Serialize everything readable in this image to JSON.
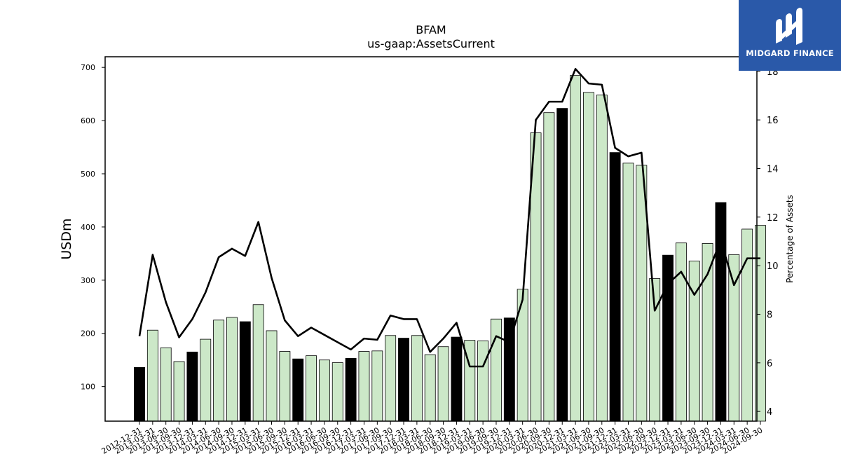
{
  "brand": {
    "name": "MIDGARD FINANCE",
    "logo_icon": "midgard-m-icon",
    "color": "#2a59a9"
  },
  "chart_data": {
    "type": "bar",
    "title": "BFAM",
    "subtitle": "us-gaap:AssetsCurrent",
    "ylabel": "USDm",
    "y2label": "Percentage of Assets",
    "ylim": [
      35,
      720
    ],
    "y2lim": [
      3.6,
      18.6
    ],
    "yticks": [
      100,
      200,
      300,
      400,
      500,
      600,
      700
    ],
    "y2ticks": [
      4,
      6,
      8,
      10,
      12,
      14,
      16,
      18
    ],
    "colors": {
      "annual_bar": "#000000",
      "quarter_bar": "#cce8c8",
      "line": "#000000"
    },
    "categories": [
      "2012-12-31",
      "2013-03-31",
      "2013-06-30",
      "2013-09-30",
      "2013-12-31",
      "2014-03-31",
      "2014-06-30",
      "2014-09-30",
      "2014-12-31",
      "2015-03-31",
      "2015-06-30",
      "2015-09-30",
      "2015-12-31",
      "2016-03-31",
      "2016-06-30",
      "2016-09-30",
      "2016-12-31",
      "2017-03-31",
      "2017-06-30",
      "2017-09-30",
      "2017-12-31",
      "2018-03-31",
      "2018-06-30",
      "2018-09-30",
      "2018-12-31",
      "2019-03-31",
      "2019-06-30",
      "2019-09-30",
      "2019-12-31",
      "2020-03-31",
      "2020-06-30",
      "2020-09-30",
      "2020-12-31",
      "2021-03-31",
      "2021-06-30",
      "2021-09-30",
      "2021-12-31",
      "2022-03-31",
      "2022-06-30",
      "2022-09-30",
      "2022-12-31",
      "2023-03-31",
      "2023-06-30",
      "2023-09-30",
      "2023-12-31",
      "2024-03-31",
      "2024-06-30",
      "2024-09-30"
    ],
    "series": [
      {
        "axis": "left",
        "values": [
          136,
          206,
          173,
          147,
          165,
          189,
          225,
          230,
          222,
          254,
          205,
          166,
          152,
          158,
          150,
          145,
          153,
          166,
          167,
          196,
          191,
          196,
          160,
          175,
          193,
          187,
          186,
          227,
          229,
          283,
          577,
          615,
          623,
          685,
          653,
          648,
          540,
          520,
          516,
          303,
          347,
          370,
          336,
          369,
          446,
          348,
          396,
          403
        ]
      },
      {
        "axis": "right",
        "values": [
          7.1,
          10.45,
          8.5,
          7.05,
          7.8,
          8.9,
          10.35,
          10.7,
          10.4,
          11.8,
          9.5,
          7.75,
          7.1,
          7.45,
          7.15,
          6.85,
          6.55,
          7.0,
          6.95,
          7.95,
          7.8,
          7.8,
          6.45,
          7.0,
          7.65,
          5.85,
          5.85,
          7.1,
          6.85,
          8.6,
          16.0,
          16.75,
          16.75,
          18.1,
          17.5,
          17.45,
          14.85,
          14.5,
          14.65,
          8.15,
          9.25,
          9.75,
          8.8,
          9.65,
          11.05,
          9.2,
          10.3,
          10.3
        ]
      }
    ],
    "annual_marker": "-12-31"
  }
}
